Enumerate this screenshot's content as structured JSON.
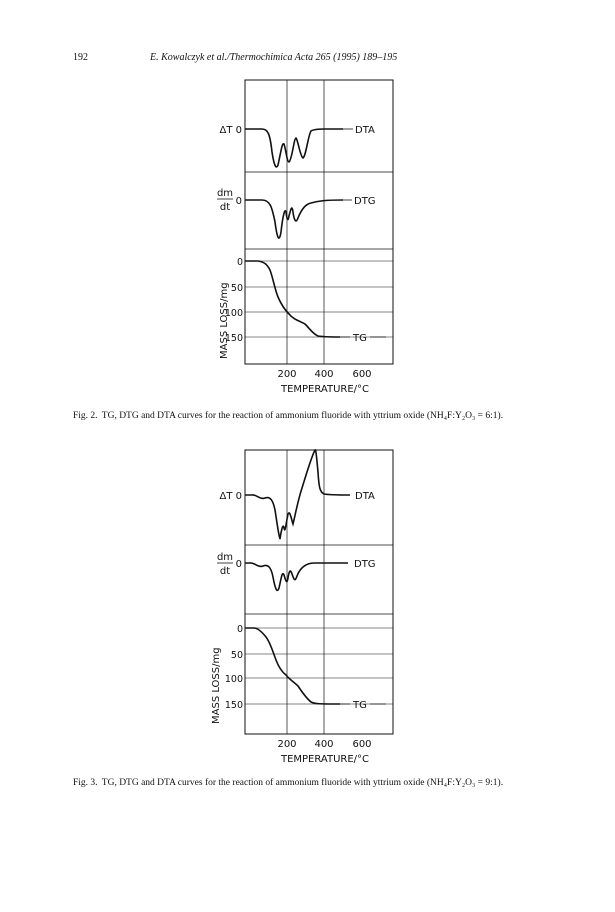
{
  "header": {
    "page_number": "192",
    "running_head": "E. Kowalczyk et al./Thermochimica Acta 265 (1995) 189–195"
  },
  "figures": [
    {
      "caption_label": "Fig. 2.",
      "caption_text": "TG, DTG and DTA curves for the reaction of ammonium fluoride with yttrium oxide (NH₄F:Y₂O₃ = 6:1).",
      "panels": {
        "dta_left": "ΔT 0",
        "dta_right": "DTA",
        "dtg_num": "dm",
        "dtg_den": "dt",
        "dtg_zero": "0",
        "dtg_right": "DTG",
        "tg_right": "TG",
        "tg_ylabel": "MASS LOSS/mg",
        "tg_ticks": [
          "0",
          "50",
          "100",
          "150"
        ]
      },
      "x_ticks": [
        "200",
        "400",
        "600"
      ],
      "x_label": "TEMPERATURE/°C"
    },
    {
      "caption_label": "Fig. 3.",
      "caption_text": "TG, DTG and DTA curves for the reaction of ammonium fluoride with yttrium oxide (NH₄F:Y₂O₃ = 9:1).",
      "panels": {
        "dta_left": "ΔT 0",
        "dta_right": "DTA",
        "dtg_num": "dm",
        "dtg_den": "dt",
        "dtg_zero": "0",
        "dtg_right": "DTG",
        "tg_right": "TG",
        "tg_ylabel": "MASS LOSS/mg",
        "tg_ticks": [
          "0",
          "50",
          "100",
          "150"
        ]
      },
      "x_ticks": [
        "200",
        "400",
        "600"
      ],
      "x_label": "TEMPERATURE/°C"
    }
  ]
}
